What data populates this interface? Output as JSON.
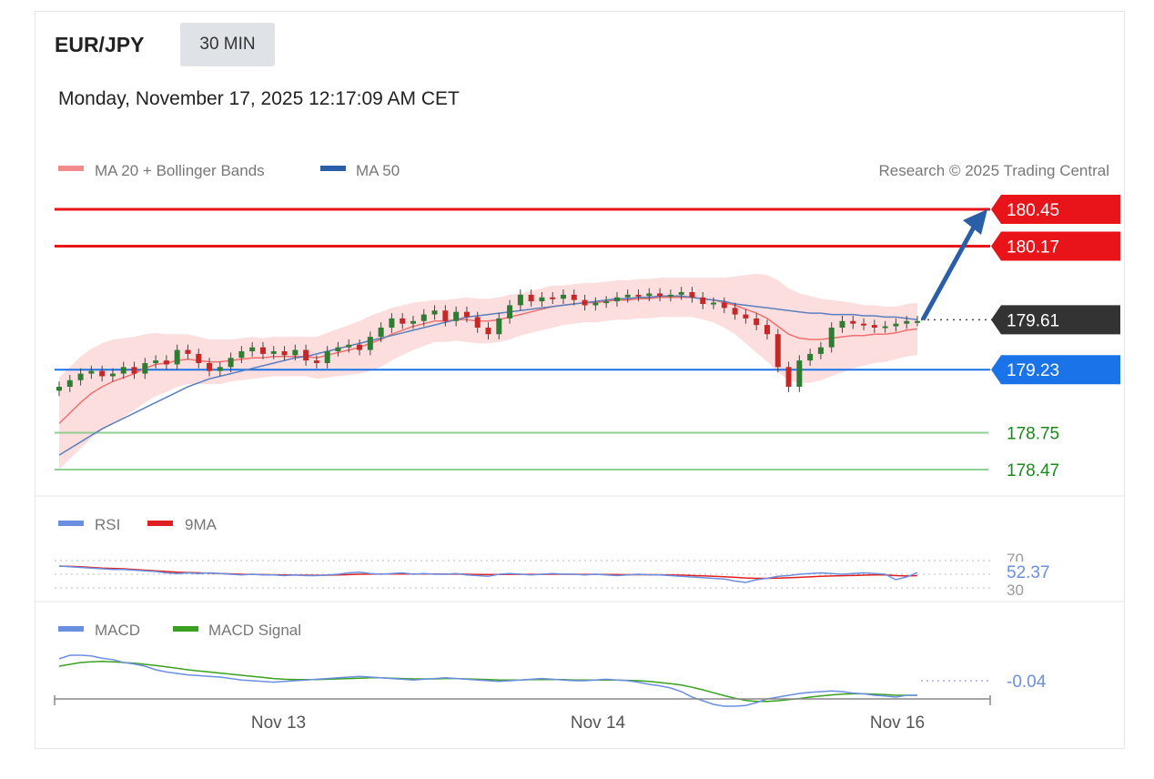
{
  "header": {
    "pair": "EUR/JPY",
    "timeframe": "30 MIN",
    "datetime": "Monday, November 17, 2025 12:17:09 AM CET"
  },
  "legend": {
    "ma20": "MA 20 + Bollinger Bands",
    "ma50": "MA 50",
    "rsi": "RSI",
    "rsi_ma": "9MA",
    "macd": "MACD",
    "macd_signal": "MACD Signal",
    "credit": "Research © 2025 Trading Central"
  },
  "colors": {
    "resistance": "#e8141a",
    "support": "#1a73e8",
    "current": "#333333",
    "target_line": "#8fcf8f",
    "target_text": "#1a8a1a",
    "candle_up": "#2e7d32",
    "candle_down": "#c62828",
    "ma20": "#f07070",
    "ma50": "#5a7fbf",
    "band_fill": "#fbd3d3",
    "rsi": "#6b8fe0",
    "rsi_ma": "#e02020",
    "macd": "#6b8fe0",
    "macd_signal": "#3aa020",
    "arrow": "#2a5fa8"
  },
  "chart_data": {
    "type": "candlestick",
    "title": "EUR/JPY 30 MIN",
    "x_ticks": [
      "Nov 13",
      "Nov 14",
      "Nov 16"
    ],
    "price_range": [
      178.25,
      180.75
    ],
    "levels": [
      {
        "value": 180.45,
        "label": "180.45",
        "kind": "resistance"
      },
      {
        "value": 180.17,
        "label": "180.17",
        "kind": "resistance"
      },
      {
        "value": 179.61,
        "label": "179.61",
        "kind": "current"
      },
      {
        "value": 179.23,
        "label": "179.23",
        "kind": "support"
      },
      {
        "value": 178.75,
        "label": "178.75",
        "kind": "target"
      },
      {
        "value": 178.47,
        "label": "178.47",
        "kind": "target"
      }
    ],
    "trend_arrow": {
      "from": 179.61,
      "to": 180.45,
      "direction": "up"
    },
    "price_series": [
      179.1,
      179.15,
      179.2,
      179.22,
      179.18,
      179.2,
      179.25,
      179.2,
      179.28,
      179.3,
      179.27,
      179.38,
      179.35,
      179.28,
      179.22,
      179.25,
      179.32,
      179.37,
      179.4,
      179.35,
      179.37,
      179.34,
      179.38,
      179.3,
      179.28,
      179.37,
      179.4,
      179.42,
      179.38,
      179.48,
      179.55,
      179.62,
      179.58,
      179.6,
      179.65,
      179.68,
      179.6,
      179.67,
      179.63,
      179.55,
      179.5,
      179.62,
      179.72,
      179.8,
      179.75,
      179.78,
      179.77,
      179.8,
      179.76,
      179.72,
      179.74,
      179.75,
      179.78,
      179.8,
      179.79,
      179.81,
      179.79,
      179.8,
      179.82,
      179.78,
      179.73,
      179.74,
      179.7,
      179.65,
      179.62,
      179.57,
      179.5,
      179.25,
      179.1,
      179.3,
      179.35,
      179.4,
      179.55,
      179.6,
      179.58,
      179.57,
      179.55,
      179.56,
      179.58,
      179.6,
      179.6
    ],
    "ma20": [
      178.82,
      178.9,
      178.98,
      179.05,
      179.1,
      179.14,
      179.17,
      179.2,
      179.24,
      179.27,
      179.28,
      179.3,
      179.31,
      179.3,
      179.29,
      179.29,
      179.3,
      179.31,
      179.32,
      179.32,
      179.33,
      179.33,
      179.33,
      179.33,
      179.32,
      179.34,
      179.36,
      179.38,
      179.4,
      179.43,
      179.46,
      179.5,
      179.53,
      179.56,
      179.58,
      179.6,
      179.6,
      179.61,
      179.61,
      179.6,
      179.6,
      179.61,
      179.63,
      179.65,
      179.67,
      179.69,
      179.71,
      179.72,
      179.73,
      179.74,
      179.74,
      179.75,
      179.76,
      179.76,
      179.77,
      179.77,
      179.78,
      179.78,
      179.78,
      179.78,
      179.77,
      179.76,
      179.74,
      179.72,
      179.69,
      179.66,
      179.62,
      179.56,
      179.5,
      179.47,
      179.46,
      179.46,
      179.47,
      179.48,
      179.49,
      179.49,
      179.5,
      179.5,
      179.51,
      179.53,
      179.54
    ],
    "ma50": [
      178.58,
      178.63,
      178.68,
      178.73,
      178.78,
      178.82,
      178.86,
      178.9,
      178.94,
      178.98,
      179.02,
      179.06,
      179.1,
      179.13,
      179.16,
      179.18,
      179.2,
      179.22,
      179.24,
      179.26,
      179.28,
      179.3,
      179.32,
      179.33,
      179.35,
      179.37,
      179.39,
      179.41,
      179.43,
      179.45,
      179.47,
      179.49,
      179.51,
      179.53,
      179.55,
      179.57,
      179.59,
      179.61,
      179.63,
      179.64,
      179.65,
      179.66,
      179.67,
      179.68,
      179.69,
      179.7,
      179.71,
      179.72,
      179.73,
      179.74,
      179.75,
      179.76,
      179.77,
      179.77,
      179.78,
      179.78,
      179.79,
      179.79,
      179.79,
      179.78,
      179.77,
      179.76,
      179.75,
      179.73,
      179.72,
      179.71,
      179.7,
      179.69,
      179.68,
      179.67,
      179.66,
      179.66,
      179.65,
      179.65,
      179.65,
      179.64,
      179.64,
      179.63,
      179.63,
      179.62,
      179.61
    ],
    "bb_width": [
      0.35,
      0.35,
      0.35,
      0.34,
      0.33,
      0.32,
      0.3,
      0.28,
      0.26,
      0.24,
      0.22,
      0.2,
      0.19,
      0.18,
      0.17,
      0.17,
      0.16,
      0.16,
      0.16,
      0.15,
      0.15,
      0.15,
      0.15,
      0.15,
      0.16,
      0.17,
      0.18,
      0.19,
      0.2,
      0.21,
      0.21,
      0.2,
      0.19,
      0.18,
      0.17,
      0.16,
      0.16,
      0.16,
      0.17,
      0.17,
      0.17,
      0.17,
      0.17,
      0.16,
      0.16,
      0.16,
      0.16,
      0.15,
      0.15,
      0.15,
      0.15,
      0.15,
      0.15,
      0.15,
      0.15,
      0.15,
      0.15,
      0.15,
      0.15,
      0.15,
      0.16,
      0.17,
      0.19,
      0.22,
      0.26,
      0.3,
      0.33,
      0.35,
      0.35,
      0.34,
      0.33,
      0.31,
      0.29,
      0.27,
      0.25,
      0.23,
      0.22,
      0.21,
      0.2,
      0.2,
      0.2
    ],
    "rsi": {
      "current": "52.37",
      "levels": [
        "70",
        "30"
      ],
      "series": [
        62,
        61,
        60,
        59,
        58,
        57,
        57,
        56,
        55,
        54,
        52,
        51,
        52,
        51,
        52,
        51,
        50,
        49,
        50,
        49,
        49,
        48,
        49,
        48,
        48,
        49,
        50,
        52,
        53,
        51,
        50,
        51,
        52,
        50,
        51,
        50,
        50,
        51,
        49,
        48,
        47,
        50,
        51,
        50,
        49,
        50,
        51,
        50,
        50,
        49,
        50,
        49,
        48,
        49,
        50,
        49,
        49,
        48,
        47,
        46,
        45,
        44,
        43,
        40,
        38,
        42,
        44,
        47,
        48,
        50,
        51,
        52,
        51,
        50,
        51,
        52,
        51,
        50,
        42,
        46,
        52.37
      ],
      "ma": [
        62,
        61.5,
        61,
        60,
        59,
        58.5,
        58,
        57,
        56,
        55,
        54,
        53,
        52.5,
        52,
        51.5,
        51,
        50.5,
        50,
        49.8,
        49.5,
        49.2,
        49,
        48.8,
        48.6,
        48.5,
        48.6,
        49,
        49.5,
        50,
        50.2,
        50.3,
        50.4,
        50.5,
        50.3,
        50.4,
        50.3,
        50.2,
        50.3,
        50,
        49.7,
        49.5,
        49.6,
        49.8,
        49.9,
        49.8,
        49.9,
        50,
        50,
        49.9,
        49.8,
        49.8,
        49.7,
        49.5,
        49.4,
        49.4,
        49.3,
        49.2,
        49,
        48.6,
        48.2,
        47.6,
        47,
        46.4,
        45.5,
        44.5,
        44,
        44,
        44.3,
        44.8,
        45.5,
        46.2,
        47,
        47.5,
        47.8,
        48.2,
        48.6,
        49,
        49,
        48,
        47.5,
        48
      ]
    },
    "macd": {
      "current": "-0.04",
      "series": [
        0.06,
        0.07,
        0.07,
        0.068,
        0.062,
        0.058,
        0.05,
        0.046,
        0.04,
        0.03,
        0.024,
        0.02,
        0.016,
        0.014,
        0.012,
        0.01,
        0.006,
        0.002,
        0,
        -0.002,
        -0.004,
        -0.002,
        0,
        0.002,
        0.004,
        0.006,
        0.008,
        0.01,
        0.012,
        0.01,
        0.008,
        0.006,
        0.004,
        0.002,
        0.004,
        0.006,
        0.008,
        0.006,
        0.004,
        0.002,
        0,
        -0.002,
        0,
        0.002,
        0.004,
        0.006,
        0.004,
        0.002,
        0,
        0,
        0.002,
        0.004,
        0.002,
        0,
        -0.004,
        -0.01,
        -0.014,
        -0.02,
        -0.03,
        -0.045,
        -0.055,
        -0.065,
        -0.07,
        -0.07,
        -0.068,
        -0.06,
        -0.05,
        -0.045,
        -0.04,
        -0.035,
        -0.032,
        -0.03,
        -0.028,
        -0.03,
        -0.034,
        -0.036,
        -0.04,
        -0.042,
        -0.045,
        -0.04,
        -0.04
      ],
      "signal": [
        0.04,
        0.045,
        0.05,
        0.052,
        0.053,
        0.052,
        0.05,
        0.048,
        0.045,
        0.042,
        0.038,
        0.034,
        0.03,
        0.027,
        0.024,
        0.021,
        0.018,
        0.015,
        0.012,
        0.009,
        0.006,
        0.004,
        0.003,
        0.003,
        0.003,
        0.004,
        0.005,
        0.006,
        0.007,
        0.008,
        0.008,
        0.007,
        0.006,
        0.005,
        0.005,
        0.005,
        0.006,
        0.006,
        0.005,
        0.004,
        0.003,
        0.002,
        0.002,
        0.002,
        0.003,
        0.003,
        0.003,
        0.003,
        0.002,
        0.002,
        0.002,
        0.002,
        0.002,
        0.001,
        0,
        -0.002,
        -0.005,
        -0.008,
        -0.012,
        -0.018,
        -0.025,
        -0.033,
        -0.041,
        -0.048,
        -0.054,
        -0.057,
        -0.057,
        -0.055,
        -0.052,
        -0.049,
        -0.045,
        -0.042,
        -0.039,
        -0.037,
        -0.036,
        -0.036,
        -0.037,
        -0.038,
        -0.04,
        -0.04,
        -0.04
      ]
    }
  }
}
